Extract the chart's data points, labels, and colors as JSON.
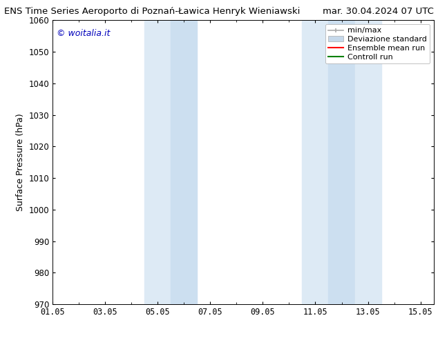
{
  "title_left": "ENS Time Series Aeroporto di Poznań-Ławica Henryk Wieniawski",
  "title_right": "mar. 30.04.2024 07 UTC",
  "ylabel": "Surface Pressure (hPa)",
  "ylim": [
    970,
    1060
  ],
  "yticks": [
    970,
    980,
    990,
    1000,
    1010,
    1020,
    1030,
    1040,
    1050,
    1060
  ],
  "xlim": [
    0,
    14.5
  ],
  "xtick_labels": [
    "01.05",
    "03.05",
    "05.05",
    "07.05",
    "09.05",
    "11.05",
    "13.05",
    "15.05"
  ],
  "xtick_positions": [
    0,
    2,
    4,
    6,
    8,
    10,
    12,
    14
  ],
  "shaded_regions": [
    {
      "x_start": 3.5,
      "x_end": 4.5,
      "color": "#ddeaf5"
    },
    {
      "x_start": 4.5,
      "x_end": 5.5,
      "color": "#ccdff0"
    },
    {
      "x_start": 9.5,
      "x_end": 10.5,
      "color": "#ddeaf5"
    },
    {
      "x_start": 10.5,
      "x_end": 11.5,
      "color": "#ccdff0"
    },
    {
      "x_start": 11.5,
      "x_end": 12.5,
      "color": "#ddeaf5"
    }
  ],
  "watermark_text": "© woitalia.it",
  "watermark_color": "#0000bb",
  "background_color": "#ffffff",
  "plot_bg_color": "#ffffff",
  "legend_entries": [
    {
      "label": "min/max",
      "color": "#aaaaaa",
      "lw": 1.2,
      "type": "minmax"
    },
    {
      "label": "Deviazione standard",
      "color": "#c5d8ea",
      "lw": 8,
      "type": "band"
    },
    {
      "label": "Ensemble mean run",
      "color": "#ff0000",
      "lw": 1.5,
      "type": "line"
    },
    {
      "label": "Controll run",
      "color": "#008000",
      "lw": 1.5,
      "type": "line"
    }
  ],
  "title_fontsize": 9.5,
  "ylabel_fontsize": 9,
  "tick_fontsize": 8.5,
  "legend_fontsize": 8,
  "watermark_fontsize": 9
}
